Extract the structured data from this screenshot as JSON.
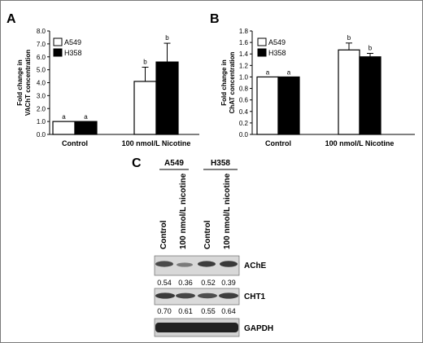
{
  "figure": {
    "panels": [
      "A",
      "B",
      "C"
    ]
  },
  "chart_data": [
    {
      "type": "bar",
      "panel": "A",
      "ylabel": "Fold change in VAChT concentration",
      "categories": [
        "Control",
        "100 nmol/L Nicotine"
      ],
      "series": [
        {
          "name": "A549",
          "color": "#ffffff",
          "values": [
            1.0,
            4.1
          ],
          "errors": [
            0.0,
            1.1
          ],
          "letters": [
            "a",
            "b"
          ]
        },
        {
          "name": "H358",
          "color": "#000000",
          "values": [
            1.0,
            5.6
          ],
          "errors": [
            0.0,
            1.45
          ],
          "letters": [
            "a",
            "b"
          ]
        }
      ],
      "ylim": [
        0,
        8
      ],
      "yticks": [
        "0.0",
        "1.0",
        "2.0",
        "3.0",
        "4.0",
        "5.0",
        "6.0",
        "7.0",
        "8.0"
      ],
      "legend": "top-left"
    },
    {
      "type": "bar",
      "panel": "B",
      "ylabel": "Fold change in ChAT concentration",
      "categories": [
        "Control",
        "100 nmol/L Nicotine"
      ],
      "series": [
        {
          "name": "A549",
          "color": "#ffffff",
          "values": [
            1.0,
            1.47
          ],
          "errors": [
            0.0,
            0.12
          ],
          "letters": [
            "a",
            "b"
          ]
        },
        {
          "name": "H358",
          "color": "#000000",
          "values": [
            1.0,
            1.35
          ],
          "errors": [
            0.0,
            0.06
          ],
          "letters": [
            "a",
            "b"
          ]
        }
      ],
      "ylim": [
        0,
        1.8
      ],
      "yticks": [
        "0.0",
        "0.2",
        "0.4",
        "0.6",
        "0.8",
        "1.0",
        "1.2",
        "1.4",
        "1.6",
        "1.8"
      ],
      "legend": "top-left"
    },
    {
      "type": "table",
      "panel": "C",
      "cell_lines": [
        "A549",
        "H358"
      ],
      "lanes": [
        "Control",
        "100 nmol/L nicotine",
        "Control",
        "100 nmol/L nicotine"
      ],
      "bands": [
        {
          "label": "AChE",
          "quant": [
            "0.54",
            "0.36",
            "0.52",
            "0.39"
          ]
        },
        {
          "label": "CHT1",
          "quant": [
            "0.70",
            "0.61",
            "0.55",
            "0.64"
          ]
        },
        {
          "label": "GAPDH",
          "quant": []
        }
      ]
    }
  ]
}
